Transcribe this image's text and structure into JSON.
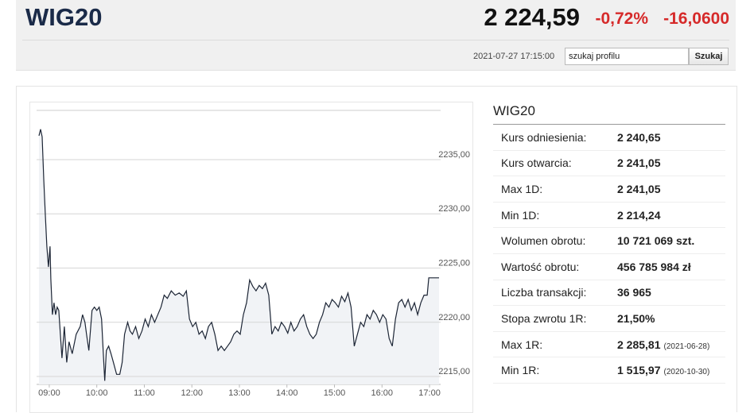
{
  "header": {
    "title": "WIG20",
    "price": "2 224,59",
    "change_pct": "-0,72%",
    "change_abs": "-16,0600",
    "timestamp": "2021-07-27 17:15:00",
    "search_placeholder": "szukaj profilu",
    "search_button": "Szukaj"
  },
  "chart_data": {
    "type": "line",
    "color": "#1c2535",
    "area_color": "#f1f3f6",
    "grid": true,
    "xlim": [
      524,
      1034
    ],
    "ylim": [
      2214.27,
      2239.54
    ],
    "xticks": [
      {
        "value": 540,
        "label": "09:00"
      },
      {
        "value": 600,
        "label": "10:00"
      },
      {
        "value": 660,
        "label": "11:00"
      },
      {
        "value": 720,
        "label": "12:00"
      },
      {
        "value": 780,
        "label": "13:00"
      },
      {
        "value": 840,
        "label": "14:00"
      },
      {
        "value": 900,
        "label": "15:00"
      },
      {
        "value": 960,
        "label": "16:00"
      },
      {
        "value": 1020,
        "label": "17:00"
      }
    ],
    "yticks": [
      {
        "value": 2215,
        "label": "2215,00"
      },
      {
        "value": 2220,
        "label": "2220,00"
      },
      {
        "value": 2225,
        "label": "2225,00"
      },
      {
        "value": 2230,
        "label": "2230,00"
      },
      {
        "value": 2235,
        "label": "2235,00"
      }
    ],
    "x": [
      527,
      529,
      531,
      533,
      535,
      537,
      539,
      541,
      542,
      544,
      546,
      548,
      550,
      552,
      554,
      556,
      559,
      562,
      565,
      569,
      574,
      579,
      582,
      585,
      587,
      590,
      594,
      597,
      600,
      603,
      606,
      608,
      610,
      612,
      615,
      618,
      621,
      625,
      629,
      632,
      635,
      639,
      642,
      645,
      649,
      653,
      657,
      661,
      665,
      669,
      673,
      677,
      681,
      685,
      689,
      694,
      699,
      704,
      709,
      713,
      717,
      721,
      725,
      729,
      733,
      737,
      741,
      745,
      749,
      753,
      757,
      761,
      765,
      769,
      773,
      777,
      781,
      785,
      789,
      793,
      797,
      801,
      805,
      809,
      813,
      817,
      821,
      825,
      829,
      833,
      837,
      841,
      845,
      849,
      853,
      857,
      861,
      865,
      869,
      873,
      877,
      881,
      885,
      889,
      893,
      897,
      901,
      905,
      909,
      913,
      917,
      921,
      925,
      929,
      933,
      937,
      941,
      945,
      949,
      953,
      957,
      961,
      965,
      969,
      973,
      977,
      981,
      985,
      989,
      993,
      997,
      1001,
      1005,
      1009,
      1013,
      1017,
      1019,
      1032
    ],
    "values": [
      2237.2,
      2237.8,
      2237.1,
      2233.2,
      2229.9,
      2227.0,
      2225.1,
      2227.0,
      2224.0,
      2220.7,
      2221.8,
      2220.7,
      2221.4,
      2221.1,
      2218.9,
      2216.7,
      2219.6,
      2216.3,
      2218.2,
      2217.1,
      2218.9,
      2219.6,
      2220.7,
      2220.0,
      2218.9,
      2217.4,
      2221.1,
      2221.4,
      2221.1,
      2221.4,
      2220.3,
      2217.4,
      2214.6,
      2217.4,
      2217.8,
      2217.1,
      2216.3,
      2215.2,
      2215.2,
      2216.3,
      2218.9,
      2220.0,
      2219.2,
      2218.9,
      2219.6,
      2218.5,
      2219.2,
      2220.3,
      2219.6,
      2220.7,
      2220.0,
      2220.7,
      2221.4,
      2222.5,
      2222.2,
      2222.9,
      2222.5,
      2222.7,
      2222.4,
      2222.9,
      2220.3,
      2219.6,
      2220.0,
      2218.9,
      2219.2,
      2218.5,
      2219.6,
      2220.0,
      2218.9,
      2217.4,
      2217.8,
      2217.4,
      2217.8,
      2218.2,
      2218.9,
      2219.2,
      2218.9,
      2220.7,
      2221.8,
      2223.9,
      2223.3,
      2222.9,
      2223.4,
      2223.1,
      2223.6,
      2222.5,
      2218.9,
      2219.6,
      2219.2,
      2220.0,
      2219.6,
      2219.0,
      2220.0,
      2219.2,
      2219.6,
      2220.3,
      2220.7,
      2219.6,
      2218.9,
      2218.5,
      2218.9,
      2220.0,
      2220.7,
      2221.8,
      2221.4,
      2222.1,
      2221.8,
      2221.4,
      2222.4,
      2221.9,
      2222.7,
      2221.4,
      2217.8,
      2218.9,
      2220.0,
      2219.6,
      2220.7,
      2220.3,
      2221.1,
      2220.7,
      2220.0,
      2220.7,
      2220.3,
      2218.5,
      2217.8,
      2220.3,
      2221.8,
      2222.1,
      2221.4,
      2222.1,
      2221.1,
      2221.8,
      2220.7,
      2221.8,
      2222.5,
      2222.5,
      2224.1,
      2224.1
    ]
  },
  "stats": {
    "title": "WIG20",
    "rows": [
      {
        "label": "Kurs odniesienia:",
        "value": "2 240,65"
      },
      {
        "label": "Kurs otwarcia:",
        "value": "2 241,05"
      },
      {
        "label": "Max 1D:",
        "value": "2 241,05"
      },
      {
        "label": "Min 1D:",
        "value": "2 214,24"
      },
      {
        "label": "Wolumen obrotu:",
        "value": "10 721 069 szt."
      },
      {
        "label": "Wartość obrotu:",
        "value": "456 785 984 zł"
      },
      {
        "label": "Liczba transakcji:",
        "value": "36 965"
      },
      {
        "label": "Stopa zwrotu 1R:",
        "value": "21,50%"
      },
      {
        "label": "Max 1R:",
        "value": "2 285,81",
        "date": "(2021-06-28)"
      },
      {
        "label": "Min 1R:",
        "value": "1 515,97",
        "date": "(2020-10-30)"
      }
    ]
  }
}
